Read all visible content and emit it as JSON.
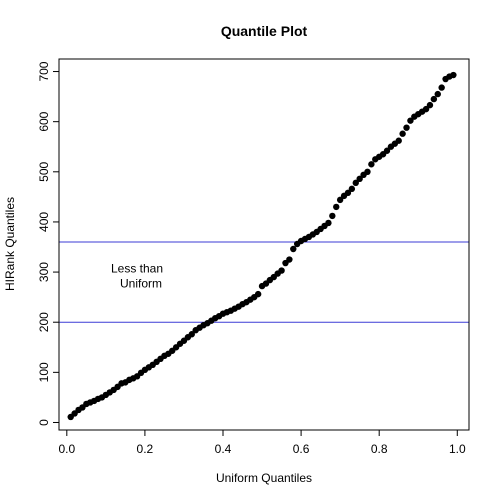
{
  "chart_data": {
    "type": "scatter",
    "title": "Quantile Plot",
    "xlabel": "Uniform Quantiles",
    "ylabel": "HIRank Quantiles",
    "xlim": [
      -0.02,
      1.03
    ],
    "ylim": [
      -15,
      725
    ],
    "x_ticks": [
      0.0,
      0.2,
      0.4,
      0.6,
      0.8,
      1.0
    ],
    "x_tick_labels": [
      "0.0",
      "0.2",
      "0.4",
      "0.6",
      "0.8",
      "1.0"
    ],
    "y_ticks": [
      0,
      100,
      200,
      300,
      400,
      500,
      600,
      700
    ],
    "y_tick_labels": [
      "0",
      "100",
      "200",
      "300",
      "400",
      "500",
      "600",
      "700"
    ],
    "grid": false,
    "colors": {
      "points": "#000000",
      "reference_lines": "#3b3bd6",
      "axes": "#000000"
    },
    "annotation": {
      "lines": [
        "Less than",
        "Uniform"
      ],
      "x": 0.19,
      "y": 285
    },
    "reference_lines": [
      {
        "orientation": "horizontal",
        "y": 200
      },
      {
        "orientation": "horizontal",
        "y": 360
      }
    ],
    "points": {
      "x": [
        0.01,
        0.02,
        0.03,
        0.04,
        0.05,
        0.06,
        0.07,
        0.08,
        0.09,
        0.1,
        0.11,
        0.12,
        0.13,
        0.14,
        0.15,
        0.16,
        0.17,
        0.18,
        0.19,
        0.2,
        0.21,
        0.22,
        0.23,
        0.24,
        0.25,
        0.26,
        0.27,
        0.28,
        0.29,
        0.3,
        0.31,
        0.32,
        0.33,
        0.34,
        0.35,
        0.36,
        0.37,
        0.38,
        0.39,
        0.4,
        0.41,
        0.42,
        0.43,
        0.44,
        0.45,
        0.46,
        0.47,
        0.48,
        0.49,
        0.5,
        0.51,
        0.52,
        0.53,
        0.54,
        0.55,
        0.56,
        0.57,
        0.58,
        0.59,
        0.6,
        0.61,
        0.62,
        0.63,
        0.64,
        0.65,
        0.66,
        0.67,
        0.68,
        0.69,
        0.7,
        0.71,
        0.72,
        0.73,
        0.74,
        0.75,
        0.76,
        0.77,
        0.78,
        0.79,
        0.8,
        0.81,
        0.82,
        0.83,
        0.84,
        0.85,
        0.86,
        0.87,
        0.88,
        0.89,
        0.9,
        0.91,
        0.92,
        0.93,
        0.94,
        0.95,
        0.96,
        0.97,
        0.98,
        0.99
      ],
      "y": [
        11,
        18,
        25,
        30,
        37,
        40,
        43,
        47,
        50,
        55,
        60,
        65,
        71,
        78,
        80,
        85,
        88,
        92,
        99,
        105,
        110,
        115,
        121,
        127,
        133,
        137,
        143,
        150,
        157,
        163,
        170,
        176,
        184,
        189,
        194,
        198,
        203,
        208,
        212,
        217,
        220,
        223,
        227,
        231,
        236,
        240,
        245,
        250,
        256,
        272,
        277,
        284,
        290,
        297,
        303,
        318,
        325,
        346,
        356,
        362,
        366,
        370,
        375,
        380,
        386,
        392,
        398,
        412,
        430,
        444,
        452,
        458,
        466,
        478,
        486,
        494,
        500,
        515,
        525,
        530,
        535,
        542,
        550,
        556,
        562,
        576,
        588,
        602,
        610,
        615,
        620,
        625,
        633,
        645,
        655,
        668,
        685,
        690,
        693
      ]
    }
  }
}
